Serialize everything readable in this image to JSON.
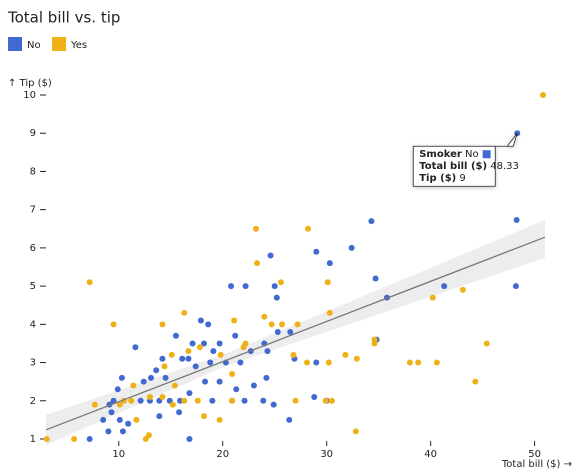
{
  "chart_data": {
    "type": "scatter",
    "title": "Total bill vs. tip",
    "xlabel": "Total bill ($) →",
    "ylabel": "↑ Tip ($)",
    "xlim": [
      3,
      51
    ],
    "ylim": [
      1,
      10
    ],
    "xticks": [
      10,
      20,
      30,
      40,
      50
    ],
    "yticks": [
      1,
      2,
      3,
      4,
      5,
      6,
      7,
      8,
      9,
      10
    ],
    "legend": "top-left",
    "series": [
      {
        "name": "No",
        "color": "#4269d0",
        "x": [
          48.33,
          48.27,
          48.2,
          34.3,
          32.4,
          29.0,
          24.6,
          30.3,
          34.7,
          35.8,
          25.0,
          25.2,
          20.8,
          22.2,
          41.3,
          17.9,
          18.6,
          15.5,
          17.1,
          16.1,
          14.2,
          13.6,
          13.1,
          12.4,
          11.6,
          10.3,
          9.9,
          9.5,
          9.1,
          9.3,
          10.1,
          10.9,
          8.5,
          7.2,
          9.0,
          10.4,
          16.8,
          12.1,
          13.0,
          13.9,
          14.9,
          15.9,
          19.0,
          20.9,
          22.1,
          23.9,
          24.9,
          19.7,
          17.4,
          18.8,
          20.3,
          21.7,
          22.7,
          24.0,
          24.3,
          25.3,
          26.5,
          26.9,
          24.2,
          23.0,
          21.3,
          18.3,
          16.8,
          19.1,
          21.2,
          19.7,
          18.2,
          29.0,
          28.8,
          26.4,
          30.0,
          34.8,
          13.9,
          15.8,
          16.7,
          14.5
        ],
        "values": [
          9,
          6.73,
          5.0,
          6.7,
          6.0,
          5.9,
          5.8,
          5.6,
          5.2,
          4.7,
          5.0,
          4.7,
          5.0,
          5.0,
          5.0,
          4.1,
          4.0,
          3.7,
          3.5,
          3.1,
          3.1,
          2.8,
          2.6,
          2.5,
          3.4,
          2.6,
          2.3,
          2.0,
          1.9,
          1.7,
          1.5,
          1.4,
          1.5,
          1.0,
          1.2,
          1.2,
          1.0,
          2.0,
          2.0,
          2.0,
          2.0,
          2.0,
          2.0,
          2.0,
          2.0,
          2.0,
          1.9,
          2.5,
          2.9,
          3.0,
          3.0,
          3.0,
          3.3,
          3.5,
          3.3,
          3.8,
          3.8,
          3.1,
          2.6,
          2.4,
          2.3,
          2.5,
          2.2,
          3.3,
          3.7,
          3.5,
          3.5,
          3.0,
          2.1,
          1.5,
          2.0,
          3.6,
          1.6,
          1.7,
          3.1,
          2.6
        ]
      },
      {
        "name": "Yes",
        "color": "#efb118",
        "x": [
          50.81,
          7.2,
          9.5,
          23.2,
          28.2,
          23.3,
          25.6,
          30.1,
          30.3,
          40.2,
          43.1,
          45.4,
          44.3,
          38.0,
          38.8,
          40.6,
          34.6,
          34.6,
          32.9,
          31.8,
          30.2,
          28.1,
          26.8,
          27.2,
          24.7,
          24.0,
          22.2,
          21.1,
          19.8,
          16.3,
          14.2,
          14.4,
          15.1,
          16.7,
          15.4,
          17.6,
          18.2,
          16.3,
          15.2,
          14.2,
          13.0,
          11.4,
          11.2,
          10.5,
          10.1,
          11.7,
          12.6,
          12.9,
          5.7,
          3.07,
          7.7,
          17.8,
          20.9,
          20.9,
          27.0,
          29.9,
          30.5,
          32.8,
          19.7,
          22.0,
          25.7
        ],
        "values": [
          10,
          5.1,
          4.0,
          6.5,
          6.5,
          5.6,
          5.1,
          5.1,
          4.3,
          4.7,
          4.9,
          3.5,
          2.5,
          3.0,
          3.0,
          3.0,
          3.6,
          3.5,
          3.1,
          3.2,
          3.0,
          3.0,
          3.2,
          4.0,
          4.0,
          4.2,
          3.5,
          4.1,
          3.2,
          4.3,
          4.0,
          2.9,
          3.2,
          3.3,
          2.4,
          2.0,
          1.6,
          2.0,
          1.9,
          2.1,
          2.1,
          2.4,
          2.0,
          2.0,
          1.9,
          1.5,
          1.0,
          1.1,
          1.0,
          1.0,
          1.9,
          3.4,
          2.7,
          2.0,
          2.0,
          2.0,
          2.0,
          1.2,
          1.5,
          3.4,
          4.0
        ]
      }
    ],
    "regression": {
      "x": [
        3,
        51
      ],
      "y": [
        1.24,
        6.28
      ],
      "band_x": [
        3,
        20,
        51
      ],
      "band_low": [
        0.84,
        2.88,
        5.74
      ],
      "band_high": [
        1.63,
        3.2,
        6.73
      ]
    },
    "tooltip": {
      "series": 0,
      "index": 0,
      "rows": [
        {
          "label": "Smoker",
          "value": "No"
        },
        {
          "label": "Total bill ($)",
          "value": 48.33
        },
        {
          "label": "Tip ($)",
          "value": 9
        }
      ]
    }
  }
}
